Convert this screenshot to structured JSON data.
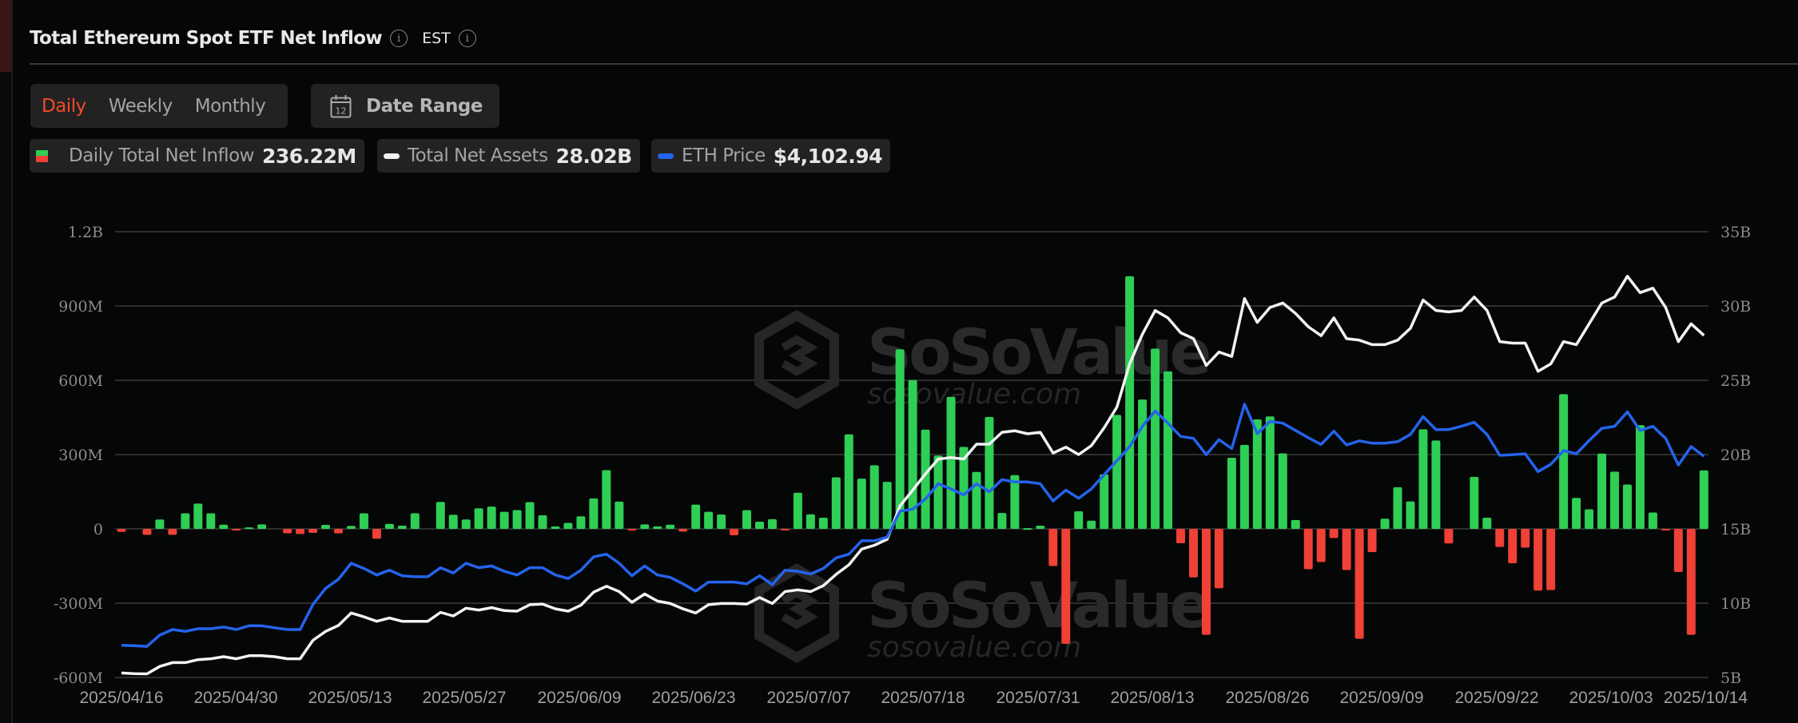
{
  "header": {
    "title": "Total Ethereum Spot ETF Net Inflow",
    "timezone": "EST",
    "info_icon": "info-circle-icon"
  },
  "tabs": [
    {
      "label": "Daily",
      "active": true
    },
    {
      "label": "Weekly",
      "active": false
    },
    {
      "label": "Monthly",
      "active": false
    }
  ],
  "date_range": {
    "label": "Date Range",
    "icon": "calendar-icon",
    "icon_text": "12"
  },
  "legend": [
    {
      "name": "Daily Total Net Inflow",
      "value": "236.22M",
      "type": "bar",
      "colors": [
        "#2fce55",
        "#ef4136"
      ]
    },
    {
      "name": "Total Net Assets",
      "value": "28.02B",
      "type": "line",
      "color": "#f2f2f2"
    },
    {
      "name": "ETH Price",
      "value": "$4,102.94",
      "type": "line",
      "color": "#2463eb"
    }
  ],
  "watermark": {
    "brand": "SoSoValue",
    "url": "sosovalue.com"
  },
  "colors": {
    "positive": "#2fce55",
    "negative": "#ef4136",
    "net_assets": "#f2f2f2",
    "eth_price": "#2463eb",
    "grid": "#2e2e2e",
    "accent": "#f04a2a"
  },
  "chart_data": {
    "type": "bar+line",
    "title": "Total Ethereum Spot ETF Net Inflow",
    "x_tick_labels": [
      "2025/04/16",
      "2025/04/30",
      "2025/05/13",
      "2025/05/27",
      "2025/06/09",
      "2025/06/23",
      "2025/07/07",
      "2025/07/18",
      "2025/07/31",
      "2025/08/13",
      "2025/08/26",
      "2025/09/09",
      "2025/09/22",
      "2025/10/03",
      "2025/10/14"
    ],
    "y_left": {
      "label": "Daily Total Net Inflow",
      "ticks": [
        "1.2B",
        "900M",
        "600M",
        "300M",
        "0",
        "-300M",
        "-600M"
      ],
      "range_millions": [
        -600,
        1200
      ]
    },
    "y_right": {
      "label": "Total Net Assets",
      "ticks": [
        "35B",
        "30B",
        "25B",
        "20B",
        "15B",
        "10B",
        "5B"
      ],
      "range_billions": [
        5,
        35
      ]
    },
    "grid": true,
    "legend_position": "top",
    "series": [
      {
        "name": "Daily Total Net Inflow (M USD)",
        "type": "bar",
        "axis": "left",
        "values": [
          -12,
          0,
          -24,
          38,
          -24,
          63,
          102,
          63,
          17,
          -3,
          6,
          18,
          0,
          -18,
          -21,
          -16,
          16,
          -18,
          12,
          63,
          -40,
          20,
          13,
          63,
          0,
          109,
          57,
          38,
          83,
          90,
          69,
          76,
          108,
          55,
          10,
          24,
          51,
          123,
          237,
          110,
          -3,
          18,
          10,
          17,
          -11,
          98,
          69,
          58,
          -26,
          76,
          29,
          39,
          -2,
          146,
          59,
          45,
          208,
          382,
          203,
          257,
          190,
          725,
          601,
          401,
          296,
          533,
          331,
          230,
          452,
          64,
          217,
          3,
          13,
          -150,
          -464,
          71,
          33,
          220,
          460,
          1020,
          522,
          728,
          636,
          -58,
          -196,
          -428,
          -240,
          287,
          339,
          442,
          454,
          305,
          36,
          -163,
          -134,
          -37,
          -166,
          -444,
          -94,
          41,
          168,
          111,
          402,
          357,
          -59,
          0,
          210,
          45,
          -73,
          -139,
          -76,
          -249,
          -247,
          544,
          125,
          79,
          304,
          231,
          179,
          419,
          66,
          -5,
          -174,
          -428,
          236.22
        ]
      },
      {
        "name": "Total Net Assets (B USD)",
        "type": "line",
        "axis": "right",
        "values": [
          5.3,
          5.26,
          5.24,
          5.74,
          6.0,
          6.0,
          6.2,
          6.26,
          6.4,
          6.26,
          6.46,
          6.46,
          6.4,
          6.26,
          6.26,
          7.5,
          8.1,
          8.5,
          9.34,
          9.08,
          8.78,
          9.0,
          8.78,
          8.78,
          8.78,
          9.38,
          9.14,
          9.66,
          9.54,
          9.7,
          9.5,
          9.46,
          9.9,
          9.94,
          9.62,
          9.46,
          9.86,
          10.74,
          11.14,
          10.78,
          10.06,
          10.62,
          10.14,
          9.98,
          9.62,
          9.34,
          9.9,
          9.98,
          9.98,
          9.94,
          10.38,
          9.98,
          10.78,
          10.9,
          10.78,
          11.18,
          11.94,
          12.58,
          13.64,
          13.9,
          14.3,
          16.54,
          17.6,
          18.7,
          19.7,
          19.8,
          19.7,
          20.7,
          20.7,
          21.5,
          21.6,
          21.4,
          21.5,
          20.1,
          20.5,
          20.0,
          20.6,
          21.8,
          23.2,
          26.1,
          28.1,
          29.7,
          29.2,
          28.2,
          27.8,
          26.0,
          26.9,
          26.6,
          30.5,
          28.9,
          29.9,
          30.2,
          29.5,
          28.6,
          28.0,
          29.2,
          27.8,
          27.7,
          27.4,
          27.4,
          27.7,
          28.5,
          30.4,
          29.7,
          29.6,
          29.7,
          30.6,
          29.7,
          27.6,
          27.5,
          27.5,
          25.6,
          26.1,
          27.6,
          27.4,
          28.8,
          30.2,
          30.6,
          32.0,
          30.9,
          31.2,
          29.9,
          27.6,
          28.8,
          28.02
        ]
      },
      {
        "name": "ETH Price (USD)",
        "type": "line",
        "axis": "hidden",
        "range": [
          1150,
          7100
        ],
        "values": [
          1580,
          1574,
          1565,
          1715,
          1790,
          1765,
          1800,
          1800,
          1823,
          1790,
          1840,
          1840,
          1813,
          1790,
          1790,
          2124,
          2340,
          2460,
          2675,
          2604,
          2518,
          2582,
          2507,
          2495,
          2495,
          2615,
          2544,
          2675,
          2615,
          2639,
          2567,
          2518,
          2615,
          2615,
          2518,
          2470,
          2582,
          2760,
          2795,
          2675,
          2507,
          2639,
          2518,
          2486,
          2400,
          2303,
          2423,
          2423,
          2423,
          2400,
          2507,
          2389,
          2582,
          2567,
          2531,
          2604,
          2746,
          2795,
          2974,
          2974,
          3023,
          3370,
          3396,
          3532,
          3736,
          3666,
          3586,
          3736,
          3629,
          3791,
          3759,
          3759,
          3736,
          3505,
          3650,
          3542,
          3666,
          3856,
          4043,
          4232,
          4502,
          4706,
          4544,
          4367,
          4341,
          4124,
          4324,
          4205,
          4798,
          4405,
          4567,
          4544,
          4447,
          4350,
          4260,
          4437,
          4253,
          4308,
          4276,
          4276,
          4297,
          4394,
          4631,
          4459,
          4459,
          4502,
          4556,
          4394,
          4114,
          4124,
          4135,
          3898,
          3995,
          4179,
          4135,
          4313,
          4475,
          4502,
          4696,
          4447,
          4502,
          4341,
          3985,
          4232,
          4102.94
        ]
      }
    ]
  }
}
